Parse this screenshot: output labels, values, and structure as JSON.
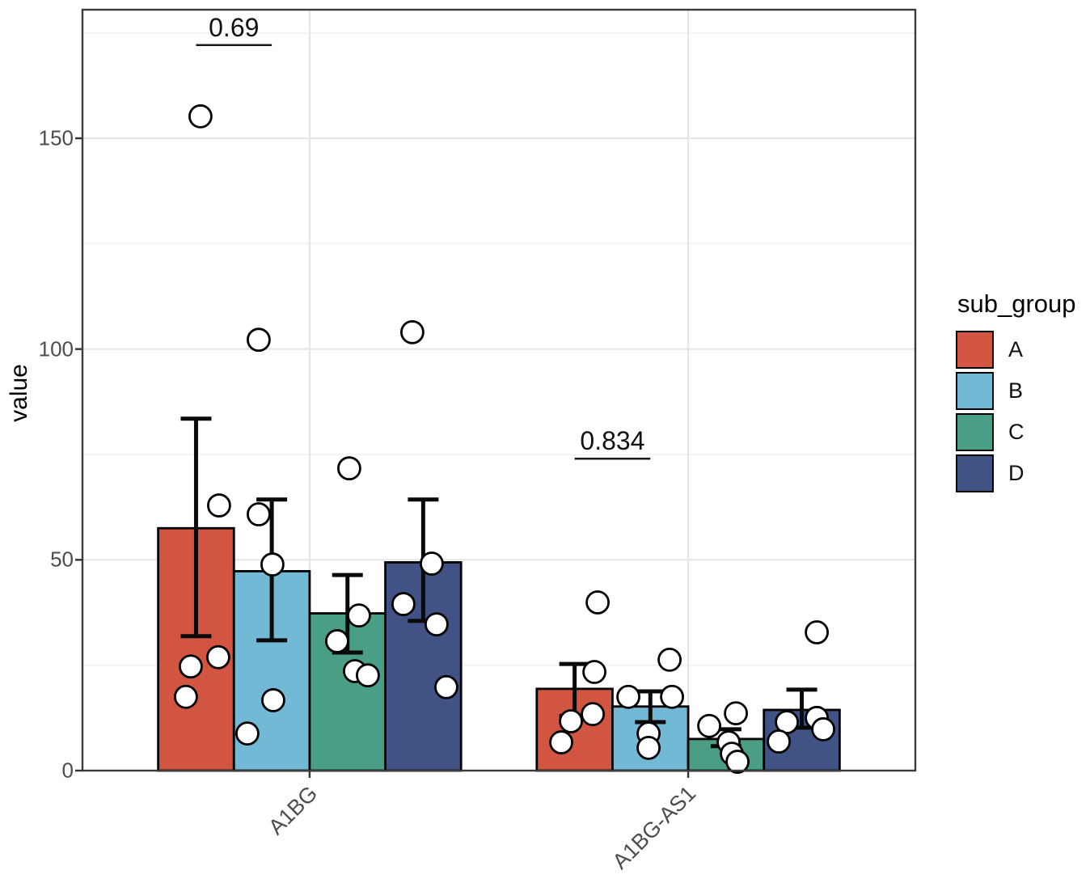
{
  "legend": {
    "title": "sub_group"
  },
  "chart_data": {
    "type": "bar",
    "title": "",
    "xlabel": "",
    "ylabel": "value",
    "categories": [
      "A1BG",
      "A1BG-AS1"
    ],
    "ylim": [
      0,
      180.5
    ],
    "grid": "major-and-minor-horizontal, major-vertical",
    "legend_position": "right",
    "yticks": [
      {
        "value": 0,
        "label": "0"
      },
      {
        "value": 50,
        "label": "50"
      },
      {
        "value": 100,
        "label": "100"
      },
      {
        "value": 150,
        "label": "150"
      }
    ],
    "yticks_minor": [
      25,
      75,
      125,
      175
    ],
    "series": [
      {
        "name": "A",
        "color": "#D15540",
        "means": [
          57.5,
          19.4
        ],
        "errors": [
          [
            31.9,
            83.5
          ],
          [
            13.0,
            25.3
          ]
        ],
        "points": [
          [
            {
              "dx": -135,
              "v": 155.2
            },
            {
              "dx": -112,
              "v": 62.9
            },
            {
              "dx": -147,
              "v": 24.7
            },
            {
              "dx": -113,
              "v": 26.9
            },
            {
              "dx": -153,
              "v": 17.5
            }
          ],
          [
            {
              "dx": -112,
              "v": 39.9
            },
            {
              "dx": -116,
              "v": 23.4
            },
            {
              "dx": -118,
              "v": 13.4
            },
            {
              "dx": -145,
              "v": 11.7
            },
            {
              "dx": -157,
              "v": 6.7
            }
          ]
        ]
      },
      {
        "name": "B",
        "color": "#72B9D5",
        "means": [
          47.3,
          15.2
        ],
        "errors": [
          [
            30.9,
            64.3
          ],
          [
            11.5,
            18.8
          ]
        ],
        "points": [
          [
            {
              "dx": -63,
              "v": 102.2
            },
            {
              "dx": -63,
              "v": 60.8
            },
            {
              "dx": -46,
              "v": 48.9
            },
            {
              "dx": -45,
              "v": 16.7
            },
            {
              "dx": -77,
              "v": 8.8
            }
          ],
          [
            {
              "dx": -23,
              "v": 26.3
            },
            {
              "dx": -74,
              "v": 17.5
            },
            {
              "dx": -20,
              "v": 17.5
            },
            {
              "dx": -49,
              "v": 8.8
            },
            {
              "dx": -49,
              "v": 5.4
            }
          ]
        ]
      },
      {
        "name": "C",
        "color": "#4A9E85",
        "means": [
          37.3,
          7.5
        ],
        "errors": [
          [
            28.0,
            46.4
          ],
          [
            5.8,
            9.8
          ]
        ],
        "points": [
          [
            {
              "dx": 49,
              "v": 71.7
            },
            {
              "dx": 61,
              "v": 36.8
            },
            {
              "dx": 34,
              "v": 30.7
            },
            {
              "dx": 56,
              "v": 23.6
            },
            {
              "dx": 72,
              "v": 22.6
            }
          ],
          [
            {
              "dx": 59,
              "v": 13.6
            },
            {
              "dx": 26,
              "v": 10.6
            },
            {
              "dx": 50,
              "v": 6.7
            },
            {
              "dx": 54,
              "v": 4.0
            },
            {
              "dx": 61,
              "v": 2.1
            }
          ]
        ]
      },
      {
        "name": "D",
        "color": "#415384",
        "means": [
          49.4,
          14.4
        ],
        "errors": [
          [
            35.5,
            64.3
          ],
          [
            10.2,
            19.2
          ]
        ],
        "points": [
          [
            {
              "dx": 127,
              "v": 104.0
            },
            {
              "dx": 151,
              "v": 49.1
            },
            {
              "dx": 116,
              "v": 39.5
            },
            {
              "dx": 157,
              "v": 34.7
            },
            {
              "dx": 169,
              "v": 19.8
            }
          ],
          [
            {
              "dx": 159,
              "v": 32.8
            },
            {
              "dx": 159,
              "v": 12.5
            },
            {
              "dx": 167,
              "v": 9.8
            },
            {
              "dx": 122,
              "v": 11.5
            },
            {
              "dx": 112,
              "v": 6.9
            }
          ]
        ]
      }
    ],
    "annotations": [
      {
        "label": "0.69",
        "category": 0,
        "from_series": 0,
        "to_series": 1,
        "y": 172.1
      },
      {
        "label": "0.834",
        "category": 1,
        "from_series": 0,
        "to_series": 1,
        "y": 74.0
      }
    ]
  }
}
